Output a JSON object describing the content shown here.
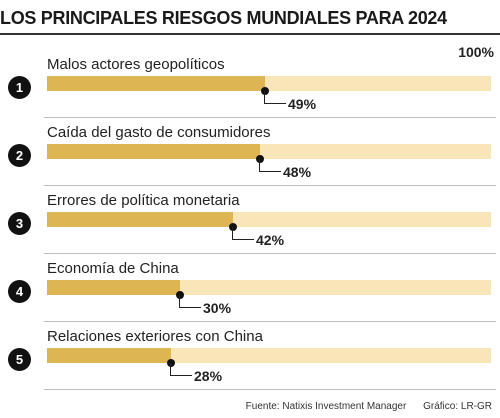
{
  "title": "LOS PRINCIPALES RIESGOS MUNDIALES PARA 2024",
  "scale_max_label": "100%",
  "colors": {
    "fill": "#ddb553",
    "track": "#f8e6b8",
    "badge": "#111111"
  },
  "chart_data": {
    "type": "bar",
    "orientation": "horizontal",
    "categories": [
      "Malos actores geopolíticos",
      "Caída del gasto de consumidores",
      "Errores de política monetaria",
      "Economía de China",
      "Relaciones exteriores con China"
    ],
    "values": [
      49,
      48,
      42,
      30,
      28
    ],
    "value_labels": [
      "49%",
      "48%",
      "42%",
      "30%",
      "28%"
    ],
    "ranks": [
      "1",
      "2",
      "3",
      "4",
      "5"
    ],
    "xlim": [
      0,
      100
    ],
    "grid": false,
    "legend": "none"
  },
  "footer": {
    "source": "Fuente: Natixis Investment Manager",
    "credit": "Gráfico: LR-GR"
  }
}
